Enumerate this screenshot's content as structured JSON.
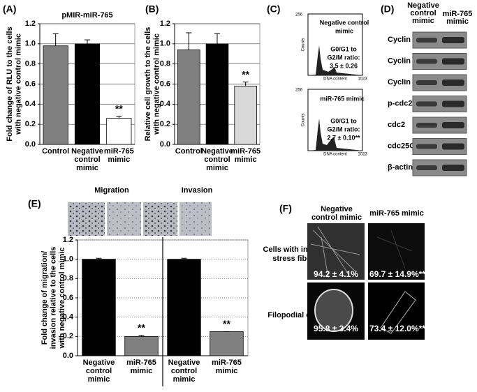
{
  "chart_data": [
    {
      "type": "bar",
      "panel": "(A)",
      "title": "pMIR-miR-765",
      "ylabel": [
        "Fold change of RLU to the cells",
        "with negative control mimic"
      ],
      "categories": [
        [
          "Control"
        ],
        [
          "Negative",
          "control",
          "mimic"
        ],
        [
          "miR-765",
          "mimic"
        ]
      ],
      "values": [
        0.98,
        1.0,
        0.26
      ],
      "errors": [
        0.12,
        0.04,
        0.02
      ],
      "colors": [
        "#808080",
        "#000000",
        "#ffffff"
      ],
      "significance": [
        null,
        null,
        "**"
      ],
      "ylim": [
        0,
        1.2
      ],
      "yticks": [
        {
          "value": 0,
          "label": "0.0"
        },
        {
          "value": 0.2,
          "label": "0.2"
        },
        {
          "value": 0.4,
          "label": "0.4"
        },
        {
          "value": 0.6,
          "label": "0.6"
        },
        {
          "value": 0.8,
          "label": "0.8"
        },
        {
          "value": 1.0,
          "label": "1.0"
        },
        {
          "value": 1.2,
          "label": "1.2"
        }
      ],
      "grid": true
    },
    {
      "type": "bar",
      "panel": "(B)",
      "ylabel": [
        "Relative cell growth to the cells",
        "with negative control mimic"
      ],
      "categories": [
        [
          "Control"
        ],
        [
          "Negative",
          "control",
          "mimic"
        ],
        [
          "miR-765",
          "mimic"
        ]
      ],
      "values": [
        0.94,
        1.0,
        0.58
      ],
      "errors": [
        0.17,
        0.1,
        0.04
      ],
      "colors": [
        "#808080",
        "#000000",
        "#d9d9d9"
      ],
      "significance": [
        null,
        null,
        "**"
      ],
      "ylim": [
        0,
        1.2
      ],
      "yticks": [
        {
          "value": 0,
          "label": "0.0"
        },
        {
          "value": 0.2,
          "label": "0.2"
        },
        {
          "value": 0.4,
          "label": "0.4"
        },
        {
          "value": 0.6,
          "label": "0.6"
        },
        {
          "value": 0.8,
          "label": "0.8"
        },
        {
          "value": 1.0,
          "label": "1.0"
        },
        {
          "value": 1.2,
          "label": "1.2"
        }
      ],
      "grid": true
    },
    {
      "type": "bar",
      "panel": "(E)",
      "groups": [
        "Migration",
        "Invasion"
      ],
      "ylabel": [
        "Fold change of migration/",
        "invasion relative to the cells",
        "with negative control mimic"
      ],
      "categories": [
        [
          "Negative",
          "control",
          "mimic"
        ],
        [
          "miR-765",
          "mimic"
        ],
        [
          "Negative",
          "control",
          "mimic"
        ],
        [
          "miR-765",
          "mimic"
        ]
      ],
      "values": [
        1.0,
        0.2,
        1.0,
        0.25
      ],
      "errors": [
        0.01,
        0.01,
        0.01,
        0.0
      ],
      "colors": [
        "#000000",
        "#808080",
        "#000000",
        "#808080"
      ],
      "significance": [
        null,
        "**",
        null,
        "**"
      ],
      "ylim": [
        0,
        1.2
      ],
      "yticks": [
        {
          "value": 0,
          "label": "0.0"
        },
        {
          "value": 0.2,
          "label": "0.2"
        },
        {
          "value": 0.4,
          "label": "0.4"
        },
        {
          "value": 0.6,
          "label": "0.6"
        },
        {
          "value": 0.8,
          "label": "0.8"
        },
        {
          "value": 1.0,
          "label": "1.0"
        },
        {
          "value": 1.2,
          "label": "1.2"
        }
      ],
      "grid": true
    }
  ],
  "panels": {
    "C": {
      "label": "(C)",
      "y_label": "Counts",
      "y_max": "256",
      "x_label": "DNA content",
      "x_max": "1023",
      "top": {
        "title": [
          "Negative control",
          "mimic"
        ],
        "ratio": [
          "G0/G1 to",
          "G2/M ratio:",
          "3.5 ± 0.26"
        ]
      },
      "bottom": {
        "title": [
          "miR-765 mimic"
        ],
        "ratio": [
          "G0/G1 to",
          "G2/M ratio:",
          "2.7 ± 0.10**"
        ]
      }
    },
    "D": {
      "label": "(D)",
      "columns": [
        [
          "Negative",
          "control",
          "mimic"
        ],
        [
          "miR-765",
          "mimic"
        ]
      ],
      "rows": [
        "Cyclin A",
        "Cyclin B",
        "Cyclin E",
        "p-cdc2",
        "cdc2",
        "cdc25C",
        "β-actin"
      ]
    },
    "F": {
      "label": "(F)",
      "columns": [
        [
          "Negative",
          "control mimic"
        ],
        [
          "miR-765 mimic"
        ]
      ],
      "rows": [
        [
          "Cells with intense",
          "stress fibers"
        ],
        [
          "Filopodial cells"
        ]
      ],
      "values": [
        [
          "94.2 ± 4.1%",
          "69.7 ± 14.9%**"
        ],
        [
          "95.8 ± 3.4%",
          "73.4 ± 12.0%**"
        ]
      ]
    }
  }
}
